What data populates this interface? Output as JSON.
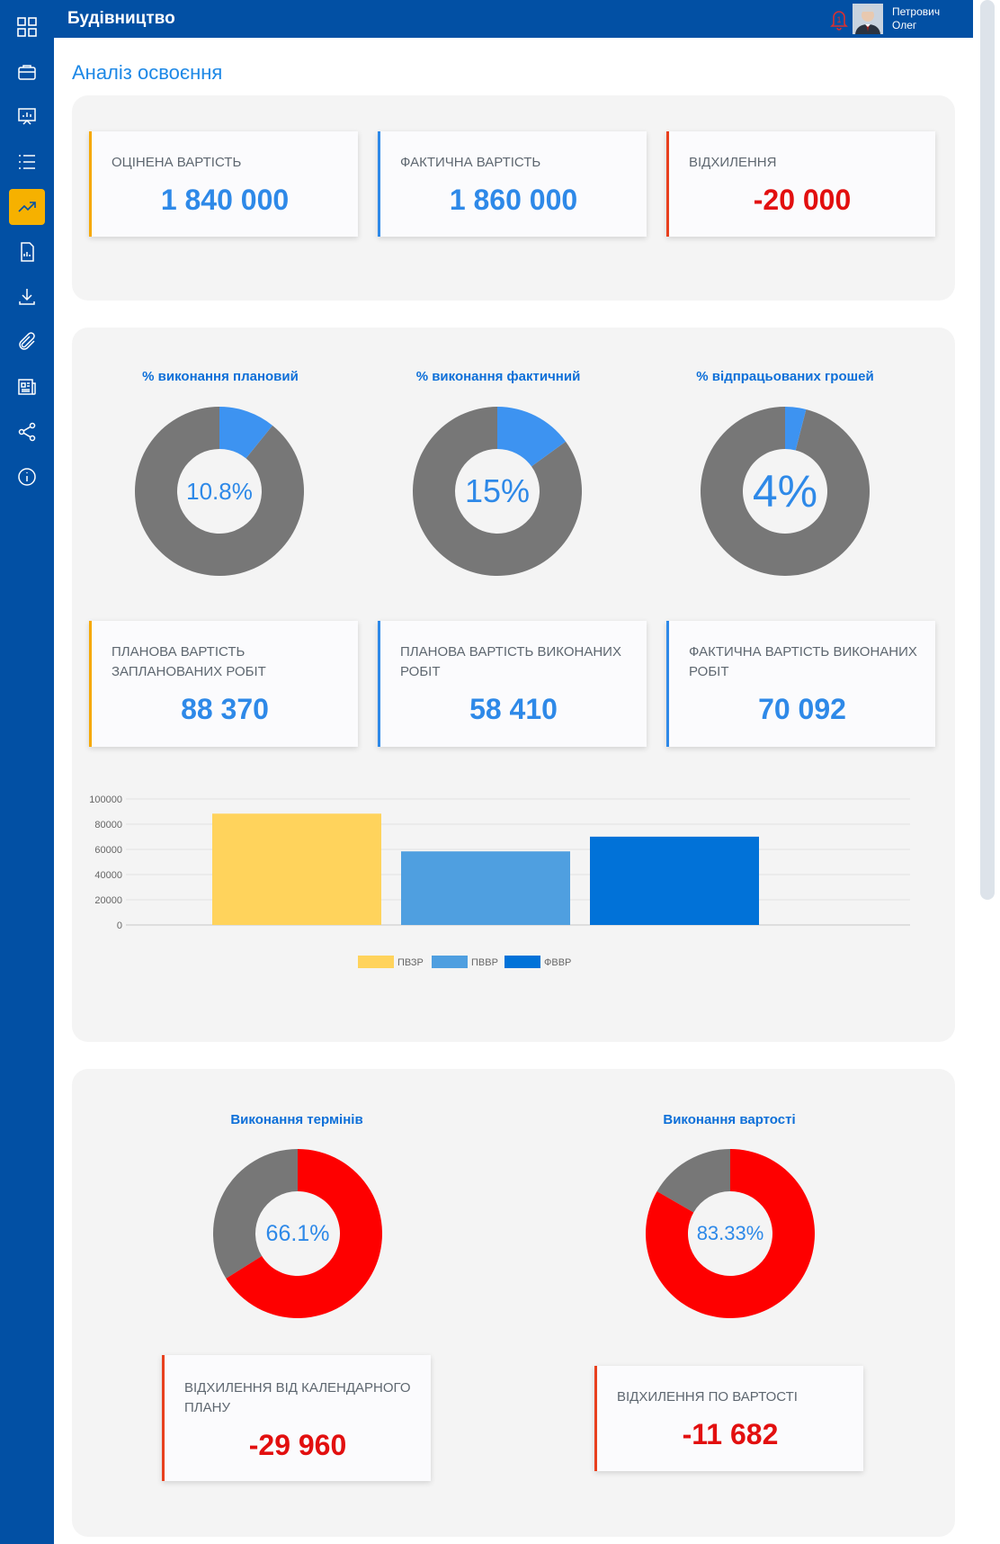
{
  "app": {
    "title": "Будівництво"
  },
  "user": {
    "surname": "Петрович",
    "name": "Олег",
    "notifications": "1"
  },
  "page": {
    "title": "Аналіз освоєння"
  },
  "sidebar": {
    "items": [
      {
        "icon": "grid-icon"
      },
      {
        "icon": "briefcase-icon"
      },
      {
        "icon": "presentation-icon"
      },
      {
        "icon": "list-icon"
      },
      {
        "icon": "trending-up-icon"
      },
      {
        "icon": "report-document-icon"
      },
      {
        "icon": "download-icon"
      },
      {
        "icon": "paperclip-icon"
      },
      {
        "icon": "newspaper-icon"
      },
      {
        "icon": "share-icon"
      },
      {
        "icon": "info-icon"
      }
    ]
  },
  "summary": {
    "estimated": {
      "label": "Оцінена вартість",
      "value": "1 840 000"
    },
    "actual": {
      "label": "Фактична вартість",
      "value": "1 860 000"
    },
    "deviation": {
      "label": "Відхилення",
      "value": "-20 000"
    }
  },
  "percent": {
    "planned": {
      "title": "% виконання плановий",
      "label": "10.8%",
      "fraction": 0.108
    },
    "actual": {
      "title": "% виконання фактичний",
      "label": "15%",
      "fraction": 0.15
    },
    "money": {
      "title": "% відпрацьованих грошей",
      "label": "4%",
      "fraction": 0.04
    }
  },
  "costs": {
    "pvzr": {
      "label": "Планова вартість запланованих робіт",
      "value": "88 370"
    },
    "pvvr": {
      "label": "Планова вартість виконаних робіт",
      "value": "58 410"
    },
    "fvvr": {
      "label": "Фактична вартість виконаних робіт",
      "value": "70 092"
    }
  },
  "chart_data": {
    "type": "bar",
    "categories": [
      "ПВЗР",
      "ПВВР",
      "ФВВР"
    ],
    "values": [
      88370,
      58410,
      70092
    ],
    "colors": [
      "#ffd35c",
      "#4f9fe0",
      "#0172d8"
    ],
    "ylim": [
      0,
      100000
    ],
    "yticks": [
      0,
      20000,
      40000,
      60000,
      80000,
      100000
    ],
    "legend": [
      "ПВЗР",
      "ПВВР",
      "ФВВР"
    ],
    "legend_position": "bottom",
    "grid": true
  },
  "execution": {
    "terms": {
      "title": "Виконання термінів",
      "label": "66.1%",
      "fraction": 0.661
    },
    "cost": {
      "title": "Виконання вартості",
      "label": "83.33%",
      "fraction": 0.8333
    }
  },
  "deviations": {
    "calendar": {
      "label": "Відхилення від календарного плану",
      "value": "-29 960"
    },
    "cost": {
      "label": "Відхилення по вартості",
      "value": "-11 682"
    }
  },
  "colors": {
    "brand": "#0250a4",
    "accent": "#f6b100",
    "blue": "#2e89e8",
    "red": "#e20f0f",
    "gray": "#777777",
    "donut_blue": "#3d93f1",
    "donut_red": "#fe0000"
  }
}
